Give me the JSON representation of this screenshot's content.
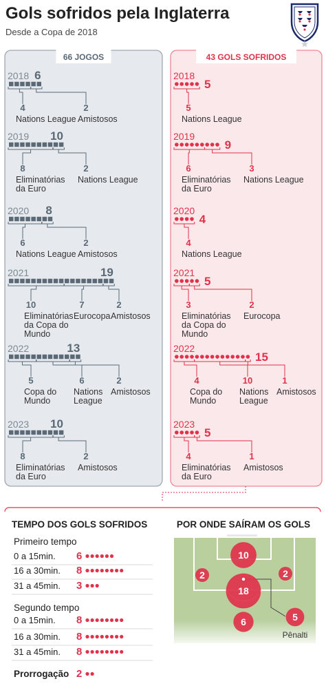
{
  "header": {
    "title": "Gols sofridos pela Inglaterra",
    "subtitle": "Desde a Copa de 2018"
  },
  "colors": {
    "grey": "#5a6975",
    "grey_bg": "#e6eaee",
    "red": "#e0324b",
    "red_bg": "#fbe8ea",
    "pitch": "#b9cf9e",
    "pitch_line": "#ffffff"
  },
  "chart_data": [
    {
      "type": "table",
      "name": "jogos",
      "header": "66 JOGOS",
      "unit": "jogos",
      "years": [
        {
          "year": "2018",
          "total": 6,
          "parts": [
            {
              "value": 4,
              "label": "Nations League"
            },
            {
              "value": 2,
              "label": "Amistosos"
            }
          ]
        },
        {
          "year": "2019",
          "total": 10,
          "parts": [
            {
              "value": 8,
              "label": "Eliminatórias da Euro"
            },
            {
              "value": 2,
              "label": "Nations League"
            }
          ]
        },
        {
          "year": "2020",
          "total": 8,
          "parts": [
            {
              "value": 6,
              "label": "Nations League"
            },
            {
              "value": 2,
              "label": "Amistosos"
            }
          ]
        },
        {
          "year": "2021",
          "total": 19,
          "parts": [
            {
              "value": 10,
              "label": "Eliminatórias da Copa do Mundo"
            },
            {
              "value": 7,
              "label": "Eurocopa"
            },
            {
              "value": 2,
              "label": "Amistosos"
            }
          ]
        },
        {
          "year": "2022",
          "total": 13,
          "parts": [
            {
              "value": 5,
              "label": "Copa do Mundo"
            },
            {
              "value": 6,
              "label": "Nations League"
            },
            {
              "value": 2,
              "label": "Amistosos"
            }
          ]
        },
        {
          "year": "2023",
          "total": 10,
          "parts": [
            {
              "value": 8,
              "label": "Eliminatórias da Euro"
            },
            {
              "value": 2,
              "label": "Amistosos"
            }
          ]
        }
      ]
    },
    {
      "type": "table",
      "name": "gols",
      "header": "43 GOLS SOFRIDOS",
      "unit": "gols",
      "years": [
        {
          "year": "2018",
          "total": 5,
          "parts": [
            {
              "value": 5,
              "label": "Nations League"
            }
          ]
        },
        {
          "year": "2019",
          "total": 9,
          "parts": [
            {
              "value": 6,
              "label": "Eliminatórias da Euro"
            },
            {
              "value": 3,
              "label": "Nations League"
            }
          ]
        },
        {
          "year": "2020",
          "total": 4,
          "parts": [
            {
              "value": 4,
              "label": "Nations League"
            }
          ]
        },
        {
          "year": "2021",
          "total": 5,
          "parts": [
            {
              "value": 3,
              "label": "Eliminatórias da Copa do Mundo"
            },
            {
              "value": 2,
              "label": "Eurocopa"
            }
          ]
        },
        {
          "year": "2022",
          "total": 15,
          "parts": [
            {
              "value": 4,
              "label": "Copa do Mundo"
            },
            {
              "value": 10,
              "label": "Nations League"
            },
            {
              "value": 1,
              "label": "Amistosos"
            }
          ]
        },
        {
          "year": "2023",
          "total": 5,
          "parts": [
            {
              "value": 4,
              "label": "Eliminatórias da Euro"
            },
            {
              "value": 1,
              "label": "Amistosos"
            }
          ]
        }
      ]
    },
    {
      "type": "bar",
      "name": "tempo",
      "title": "TEMPO DOS GOLS SOFRIDOS",
      "groups": [
        {
          "label": "Primeiro tempo",
          "rows": [
            {
              "label": "0 a 15min.",
              "value": 6
            },
            {
              "label": "16 a 30min.",
              "value": 8
            },
            {
              "label": "31 a 45min.",
              "value": 3
            }
          ]
        },
        {
          "label": "Segundo tempo",
          "rows": [
            {
              "label": "0 a 15min.",
              "value": 8
            },
            {
              "label": "16 a 30min.",
              "value": 8
            },
            {
              "label": "31 a 45min.",
              "value": 8
            }
          ]
        },
        {
          "label": "Prorrogação",
          "rows": [
            {
              "label": "",
              "value": 2
            }
          ]
        }
      ]
    },
    {
      "type": "scatter",
      "name": "origem",
      "title": "POR ONDE SAÍRAM OS GOLS",
      "zones": [
        {
          "zone": "área pequena",
          "value": 10
        },
        {
          "zone": "lateral esquerda",
          "value": 2
        },
        {
          "zone": "lateral direita",
          "value": 2
        },
        {
          "zone": "marca do pênalti",
          "value": 18
        },
        {
          "zone": "fora da área",
          "value": 6
        },
        {
          "zone": "pênalti",
          "value": 5,
          "label": "Pênalti"
        }
      ]
    }
  ]
}
